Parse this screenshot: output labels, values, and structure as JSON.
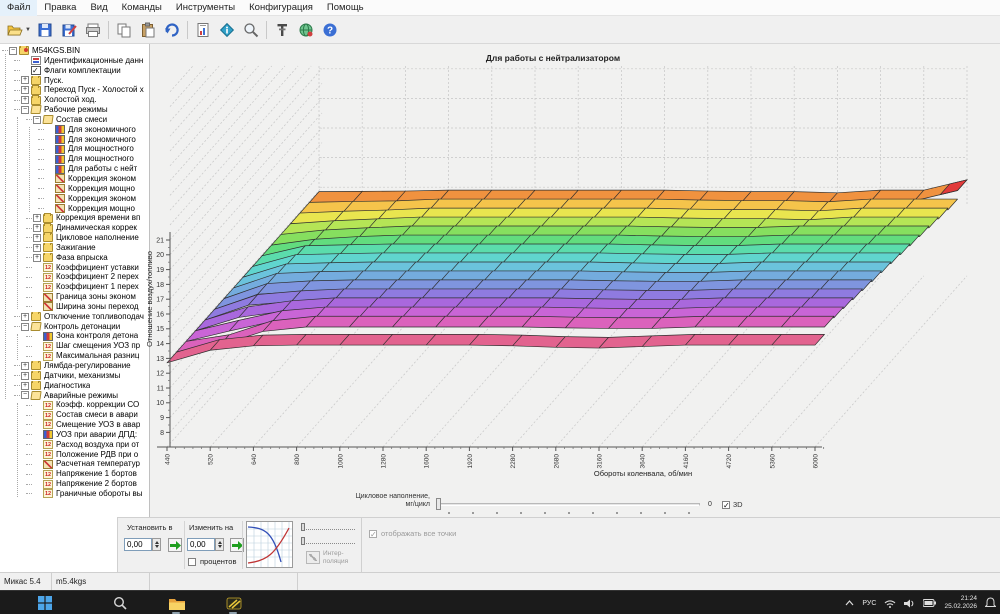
{
  "menu": {
    "items": [
      "Файл",
      "Правка",
      "Вид",
      "Команды",
      "Инструменты",
      "Конфигурация",
      "Помощь"
    ]
  },
  "toolbar": {
    "icons": [
      "open-file",
      "save",
      "save-as",
      "print",
      "copy",
      "paste",
      "undo",
      "report",
      "info",
      "search",
      "tune",
      "connect",
      "help"
    ]
  },
  "tree": {
    "items": [
      {
        "d": 0,
        "t": "-",
        "i": "bin",
        "label": "M54KGS.BIN"
      },
      {
        "d": 1,
        "t": null,
        "i": "doc",
        "label": "Идентификационные данн"
      },
      {
        "d": 1,
        "t": null,
        "i": "flag",
        "label": "Флаги комплектации"
      },
      {
        "d": 1,
        "t": "+",
        "i": "folder",
        "label": "Пуск."
      },
      {
        "d": 1,
        "t": "+",
        "i": "folder",
        "label": "Переход Пуск - Холостой х"
      },
      {
        "d": 1,
        "t": "+",
        "i": "folder",
        "label": "Холостой ход."
      },
      {
        "d": 1,
        "t": "-",
        "i": "folder-open",
        "label": "Рабочие режимы"
      },
      {
        "d": 2,
        "t": "-",
        "i": "folder-open",
        "label": "Состав смеси"
      },
      {
        "d": 3,
        "t": null,
        "i": "map",
        "label": "Для экономичного"
      },
      {
        "d": 3,
        "t": null,
        "i": "map",
        "label": "Для экономичного"
      },
      {
        "d": 3,
        "t": null,
        "i": "map",
        "label": "Для мощностного"
      },
      {
        "d": 3,
        "t": null,
        "i": "map",
        "label": "Для мощностного"
      },
      {
        "d": 3,
        "t": null,
        "i": "map",
        "label": "Для работы с нейт"
      },
      {
        "d": 3,
        "t": null,
        "i": "corr",
        "label": "Коррекция эконом"
      },
      {
        "d": 3,
        "t": null,
        "i": "corr",
        "label": "Коррекция мощно"
      },
      {
        "d": 3,
        "t": null,
        "i": "corr",
        "label": "Коррекция эконом"
      },
      {
        "d": 3,
        "t": null,
        "i": "corr",
        "label": "Коррекция мощно"
      },
      {
        "d": 2,
        "t": "+",
        "i": "folder",
        "label": "Коррекция времени вп"
      },
      {
        "d": 2,
        "t": "+",
        "i": "folder",
        "label": "Динамическая коррек"
      },
      {
        "d": 2,
        "t": "+",
        "i": "folder",
        "label": "Цикловое наполнение"
      },
      {
        "d": 2,
        "t": "+",
        "i": "folder",
        "label": "Зажигание"
      },
      {
        "d": 2,
        "t": "+",
        "i": "folder",
        "label": "Фаза впрыска"
      },
      {
        "d": 2,
        "t": null,
        "i": "f2",
        "label": "Коэффициент уставки"
      },
      {
        "d": 2,
        "t": null,
        "i": "f2",
        "label": "Коэффициент 2 перех"
      },
      {
        "d": 2,
        "t": null,
        "i": "f2",
        "label": "Коэффициент 1 перех"
      },
      {
        "d": 2,
        "t": null,
        "i": "corr",
        "label": "Граница зоны эконом"
      },
      {
        "d": 2,
        "t": null,
        "i": "corr",
        "label": "Ширина зоны переход"
      },
      {
        "d": 1,
        "t": "+",
        "i": "folder",
        "label": "Отключение топливоподач"
      },
      {
        "d": 1,
        "t": "-",
        "i": "folder-open",
        "label": "Контроль детонации"
      },
      {
        "d": 2,
        "t": null,
        "i": "map",
        "label": "Зона контроля детона"
      },
      {
        "d": 2,
        "t": null,
        "i": "f2",
        "label": "Шаг смещения УОЗ пр"
      },
      {
        "d": 2,
        "t": null,
        "i": "f2",
        "label": "Максимальная разниц"
      },
      {
        "d": 1,
        "t": "+",
        "i": "folder",
        "label": "Лямбда-регулирование"
      },
      {
        "d": 1,
        "t": "+",
        "i": "folder",
        "label": "Датчики, механизмы"
      },
      {
        "d": 1,
        "t": "+",
        "i": "folder",
        "label": "Диагностика"
      },
      {
        "d": 1,
        "t": "-",
        "i": "folder-open",
        "label": "Аварийные режимы"
      },
      {
        "d": 2,
        "t": null,
        "i": "f2",
        "label": "Коэфф. коррекции СО"
      },
      {
        "d": 2,
        "t": null,
        "i": "f2",
        "label": "Состав смеси в авари"
      },
      {
        "d": 2,
        "t": null,
        "i": "f2",
        "label": "Смещение УОЗ в авар"
      },
      {
        "d": 2,
        "t": null,
        "i": "map",
        "label": "УОЗ при аварии ДПД:"
      },
      {
        "d": 2,
        "t": null,
        "i": "f2",
        "label": "Расход воздуха при от"
      },
      {
        "d": 2,
        "t": null,
        "i": "f2",
        "label": "Положение РДВ при о"
      },
      {
        "d": 2,
        "t": null,
        "i": "corr",
        "label": "Расчетная температур"
      },
      {
        "d": 2,
        "t": null,
        "i": "f2",
        "label": "Напряжение 1 бортов"
      },
      {
        "d": 2,
        "t": null,
        "i": "f2",
        "label": "Напряжение 2 бортов"
      },
      {
        "d": 2,
        "t": null,
        "i": "f2",
        "label": "Граничные обороты вы"
      }
    ]
  },
  "chart_data": {
    "type": "surface",
    "title": "Для работы с нейтрализатором",
    "xlabel": "Обороты коленвала, об/мин",
    "ylabel": "Отношение воздух/топливо",
    "zlabel": "Цикловое наполнение, мг/цикл",
    "x_ticks": [
      440,
      520,
      640,
      800,
      1000,
      1280,
      1600,
      1920,
      2280,
      2680,
      3160,
      3640,
      4160,
      4720,
      5360,
      6000
    ],
    "y_min": 8,
    "y_max": 21,
    "grid": "dashed",
    "rows_front_to_back": 16,
    "values": [
      [
        12.7,
        13.55,
        13.85,
        13.9,
        13.9,
        13.9,
        13.9,
        13.9,
        13.85,
        13.75,
        13.7,
        13.8,
        13.9,
        13.9,
        13.9,
        13.9
      ],
      [
        12.7,
        13.15,
        14.1,
        14.4,
        14.4,
        14.4,
        14.4,
        14.4,
        14.4,
        14.34,
        14.3,
        14.3,
        14.4,
        14.4,
        14.4,
        14.4
      ],
      [
        12.7,
        13.4,
        14.05,
        14.3,
        14.3,
        14.3,
        14.3,
        14.3,
        14.3,
        14.24,
        14.2,
        14.2,
        14.3,
        14.3,
        14.3,
        14.3
      ],
      [
        12.7,
        13.6,
        14.0,
        14.2,
        14.2,
        14.2,
        14.2,
        14.2,
        14.2,
        14.14,
        14.1,
        14.1,
        14.2,
        14.2,
        14.2,
        14.2
      ],
      [
        12.7,
        13.7,
        13.95,
        14.08,
        14.08,
        14.08,
        14.08,
        14.08,
        14.08,
        14.02,
        13.98,
        13.98,
        14.08,
        14.08,
        14.08,
        14.08
      ],
      [
        12.7,
        13.72,
        13.9,
        13.97,
        13.97,
        13.97,
        13.97,
        13.97,
        13.97,
        13.91,
        13.87,
        13.87,
        13.97,
        13.97,
        13.97,
        13.97
      ],
      [
        12.7,
        13.68,
        13.8,
        13.85,
        13.85,
        13.85,
        13.85,
        13.85,
        13.85,
        13.79,
        13.75,
        13.75,
        13.85,
        13.85,
        13.85,
        13.85
      ],
      [
        12.7,
        13.6,
        13.68,
        13.73,
        13.73,
        13.73,
        13.73,
        13.73,
        13.73,
        13.67,
        13.63,
        13.63,
        13.73,
        13.73,
        13.73,
        13.73
      ],
      [
        12.7,
        13.5,
        13.57,
        13.62,
        13.62,
        13.62,
        13.62,
        13.62,
        13.62,
        13.56,
        13.52,
        13.52,
        13.62,
        13.62,
        13.62,
        13.62
      ],
      [
        12.7,
        13.38,
        13.45,
        13.5,
        13.5,
        13.5,
        13.5,
        13.5,
        13.5,
        13.44,
        13.4,
        13.4,
        13.5,
        13.5,
        13.5,
        13.5
      ],
      [
        12.7,
        13.1,
        13.28,
        13.38,
        13.38,
        13.38,
        13.38,
        13.38,
        13.38,
        13.32,
        13.28,
        13.28,
        13.38,
        13.38,
        13.38,
        13.38
      ],
      [
        12.7,
        13.0,
        13.15,
        13.27,
        13.27,
        13.27,
        13.27,
        13.27,
        13.27,
        13.21,
        13.17,
        13.17,
        13.27,
        13.27,
        13.27,
        13.27
      ],
      [
        12.7,
        12.9,
        13.03,
        13.15,
        13.15,
        13.15,
        13.15,
        13.15,
        13.15,
        13.09,
        13.05,
        13.05,
        12.97,
        13.15,
        13.15,
        13.15
      ],
      [
        12.7,
        12.82,
        12.9,
        13.03,
        13.03,
        13.03,
        13.03,
        13.03,
        13.03,
        12.97,
        12.93,
        12.93,
        12.85,
        13.03,
        13.03,
        13.03
      ],
      [
        12.7,
        12.76,
        12.8,
        12.92,
        12.92,
        12.92,
        12.92,
        12.92,
        12.92,
        12.86,
        12.82,
        12.82,
        12.74,
        12.92,
        12.92,
        12.92
      ],
      [
        12.7,
        12.72,
        12.74,
        12.8,
        12.8,
        12.8,
        12.8,
        12.8,
        12.8,
        12.74,
        12.7,
        12.7,
        12.62,
        12.8,
        12.8,
        13.5
      ]
    ],
    "row_colors_front_to_back": [
      "#E2638F",
      "#DB62BC",
      "#C965D6",
      "#A968DD",
      "#8F7BE0",
      "#7F95DF",
      "#74ACDE",
      "#6BC3DC",
      "#60D5CE",
      "#5BDCAC",
      "#62DC7E",
      "#86DF5F",
      "#B5E556",
      "#E9E54F",
      "#F5C44B",
      "#F0923F"
    ],
    "spike": {
      "row": 15,
      "col": 15,
      "color": "#E23B3B"
    }
  },
  "controls": {
    "set_label": "Установить в",
    "set_value": "0,00",
    "change_label": "Изменить на",
    "change_value": "0,00",
    "percent_label": "процентов",
    "interp_line1": "Интер-",
    "interp_line2": "поляция",
    "cyc_label_line1": "Цикловое наполнение,",
    "cyc_label_line2": "мг/цикл",
    "cyc_value": "0",
    "view3d_label": "3D",
    "show_all_label": "отображать все точки"
  },
  "status_bar": {
    "app": "Микас 5.4",
    "file": "m5.4kgs"
  },
  "taskbar": {
    "lang": "РУС",
    "time": "21:24",
    "date": "25.02.2026"
  }
}
